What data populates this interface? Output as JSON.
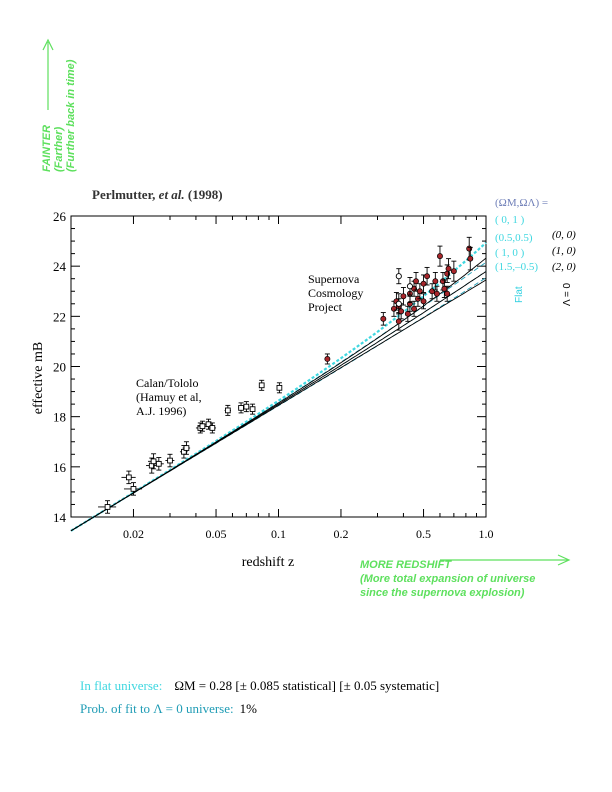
{
  "colors": {
    "green": "#5ee05e",
    "cyan": "#3fd7e0",
    "teal": "#1f9cb5",
    "slate": "#6f7fb8",
    "black": "#000000",
    "red_point": "#a8262b",
    "flat_label": "#2fd0e0"
  },
  "side_label": {
    "line1": "FAINTER",
    "line2": "(Farther)",
    "line3": "(Further back in time)"
  },
  "citation": {
    "name": "Perlmutter,",
    "etal": "et al.",
    "year": "(1998)"
  },
  "legend": {
    "header": "(ΩM,ΩΛ) =",
    "flat_rows": [
      "( 0,  1 )",
      "(0.5,0.5)",
      "( 1,   0 )",
      "(1.5,–0.5)"
    ],
    "zero_rows": [
      "(0, 0)",
      "(1, 0)",
      "(2, 0)"
    ],
    "flat_label": "Flat",
    "zero_label": "Λ = 0"
  },
  "annotations": {
    "scp": [
      "Supernova",
      "Cosmology",
      "Project"
    ],
    "calan": [
      "Calan/Tololo",
      "(Hamuy et al,",
      "A.J. 1996)"
    ]
  },
  "redshift_note": {
    "line1": "MORE REDSHIFT",
    "line2": "(More total expansion of universe",
    "line3": "since the supernova explosion)"
  },
  "footer": {
    "flat_label": "In flat universe:",
    "flat_value": "ΩM = 0.28 [± 0.085 statistical] [± 0.05 systematic]",
    "prob_label": "Prob. of fit to Λ = 0 universe:",
    "prob_value": "1%"
  },
  "chart_data": {
    "type": "scatter",
    "title": "",
    "xlabel": "redshift  z",
    "ylabel": "effective  mB",
    "xscale": "log",
    "xlim": [
      0.01,
      1.0
    ],
    "ylim": [
      14,
      26
    ],
    "xticks": [
      0.02,
      0.05,
      0.1,
      0.2,
      0.5,
      1.0
    ],
    "xtick_labels": [
      "0.02",
      "0.05",
      "0.1",
      "0.2",
      "0.5",
      "1.0"
    ],
    "yticks": [
      14,
      16,
      18,
      20,
      22,
      24,
      26
    ],
    "ytick_labels": [
      "14",
      "16",
      "18",
      "20",
      "22",
      "24",
      "26"
    ],
    "series": [
      {
        "name": "Calan/Tololo",
        "marker": "open-square",
        "points": [
          {
            "x": 0.015,
            "y": 14.4,
            "ex": 0.0015,
            "ey": 0.25
          },
          {
            "x": 0.019,
            "y": 15.58,
            "ex": 0.0015,
            "ey": 0.25
          },
          {
            "x": 0.02,
            "y": 15.12,
            "ex": 0.002,
            "ey": 0.25
          },
          {
            "x": 0.0245,
            "y": 16.05,
            "ex": 0.0015,
            "ey": 0.3
          },
          {
            "x": 0.025,
            "y": 16.22,
            "ex": 0.0015,
            "ey": 0.3
          },
          {
            "x": 0.0265,
            "y": 16.12,
            "ex": 0.0015,
            "ey": 0.25
          },
          {
            "x": 0.03,
            "y": 16.25,
            "ex": 0.0015,
            "ey": 0.25
          },
          {
            "x": 0.035,
            "y": 16.6,
            "ex": 0.0015,
            "ey": 0.25
          },
          {
            "x": 0.036,
            "y": 16.75,
            "ex": 0.0015,
            "ey": 0.25
          },
          {
            "x": 0.042,
            "y": 17.55,
            "ex": 0.002,
            "ey": 0.2
          },
          {
            "x": 0.043,
            "y": 17.62,
            "ex": 0.002,
            "ey": 0.2
          },
          {
            "x": 0.046,
            "y": 17.7,
            "ex": 0.002,
            "ey": 0.2
          },
          {
            "x": 0.048,
            "y": 17.55,
            "ex": 0.002,
            "ey": 0.2
          },
          {
            "x": 0.057,
            "y": 18.25,
            "ex": 0.002,
            "ey": 0.2
          },
          {
            "x": 0.066,
            "y": 18.35,
            "ex": 0.002,
            "ey": 0.2
          },
          {
            "x": 0.07,
            "y": 18.4,
            "ex": 0.002,
            "ey": 0.2
          },
          {
            "x": 0.075,
            "y": 18.3,
            "ex": 0.002,
            "ey": 0.2
          },
          {
            "x": 0.083,
            "y": 19.25,
            "ex": 0.002,
            "ey": 0.2
          },
          {
            "x": 0.101,
            "y": 19.15,
            "ex": 0.002,
            "ey": 0.2
          }
        ]
      },
      {
        "name": "Supernova Cosmology Project",
        "marker": "red-circle",
        "points": [
          {
            "x": 0.172,
            "y": 20.3,
            "ey": 0.2
          },
          {
            "x": 0.32,
            "y": 21.9,
            "ey": 0.25
          },
          {
            "x": 0.36,
            "y": 22.3,
            "ey": 0.3
          },
          {
            "x": 0.37,
            "y": 22.6,
            "ey": 0.35
          },
          {
            "x": 0.38,
            "y": 22.4,
            "ey": 0.3
          },
          {
            "x": 0.38,
            "y": 21.8,
            "ey": 0.35
          },
          {
            "x": 0.39,
            "y": 22.2,
            "ey": 0.3
          },
          {
            "x": 0.4,
            "y": 22.8,
            "ey": 0.35
          },
          {
            "x": 0.42,
            "y": 22.1,
            "ey": 0.3
          },
          {
            "x": 0.43,
            "y": 22.5,
            "ey": 0.3
          },
          {
            "x": 0.43,
            "y": 22.9,
            "ey": 0.35
          },
          {
            "x": 0.45,
            "y": 23.1,
            "ey": 0.3
          },
          {
            "x": 0.45,
            "y": 22.3,
            "ey": 0.3
          },
          {
            "x": 0.46,
            "y": 23.4,
            "ey": 0.35
          },
          {
            "x": 0.47,
            "y": 22.7,
            "ey": 0.3
          },
          {
            "x": 0.48,
            "y": 23.0,
            "ey": 0.3
          },
          {
            "x": 0.5,
            "y": 23.3,
            "ey": 0.35
          },
          {
            "x": 0.5,
            "y": 22.6,
            "ey": 0.3
          },
          {
            "x": 0.52,
            "y": 23.6,
            "ey": 0.35
          },
          {
            "x": 0.55,
            "y": 23.0,
            "ey": 0.3
          },
          {
            "x": 0.57,
            "y": 23.4,
            "ey": 0.35
          },
          {
            "x": 0.58,
            "y": 22.9,
            "ey": 0.3
          },
          {
            "x": 0.6,
            "y": 24.4,
            "ey": 0.4
          },
          {
            "x": 0.62,
            "y": 23.4,
            "ey": 0.35
          },
          {
            "x": 0.63,
            "y": 23.1,
            "ey": 0.35
          },
          {
            "x": 0.65,
            "y": 23.7,
            "ey": 0.35
          },
          {
            "x": 0.65,
            "y": 22.9,
            "ey": 0.3
          },
          {
            "x": 0.66,
            "y": 23.9,
            "ey": 0.4
          },
          {
            "x": 0.7,
            "y": 23.8,
            "ey": 0.4
          },
          {
            "x": 0.83,
            "y": 24.7,
            "ey": 0.45
          },
          {
            "x": 0.84,
            "y": 24.3,
            "ey": 0.45
          }
        ]
      },
      {
        "name": "",
        "marker": "open-circle",
        "points": [
          {
            "x": 0.38,
            "y": 23.6,
            "ey": 0.3
          },
          {
            "x": 0.38,
            "y": 22.5,
            "ey": 0.4
          },
          {
            "x": 0.43,
            "y": 23.2,
            "ey": 0.35
          }
        ]
      }
    ],
    "model_curves": [
      {
        "label": "( 0,  1 )",
        "omega_m": 0.0,
        "omega_l": 1.0,
        "style": "dashed",
        "color": "cyan"
      },
      {
        "label": "(0.5,0.5)",
        "omega_m": 0.5,
        "omega_l": 0.5,
        "style": "dashed",
        "color": "teal"
      },
      {
        "label": "( 1,   0 )",
        "omega_m": 1.0,
        "omega_l": 0.0,
        "style": "dashed",
        "color": "teal"
      },
      {
        "label": "(1.5,–0.5)",
        "omega_m": 1.5,
        "omega_l": -0.5,
        "style": "dashed",
        "color": "teal"
      },
      {
        "label": "(0, 0)",
        "omega_m": 0.0,
        "omega_l": 0.0,
        "style": "solid",
        "color": "black"
      },
      {
        "label": "(1, 0)",
        "omega_m": 1.0,
        "omega_l": 0.0,
        "style": "solid",
        "color": "black"
      },
      {
        "label": "(2, 0)",
        "omega_m": 2.0,
        "omega_l": 0.0,
        "style": "solid",
        "color": "black"
      }
    ],
    "grid": false
  }
}
